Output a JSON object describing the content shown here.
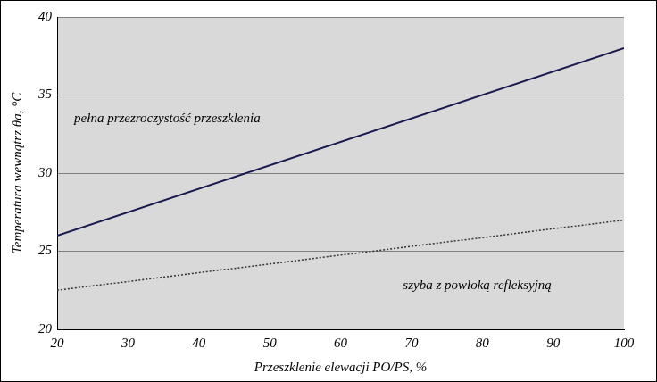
{
  "chart_data": {
    "type": "line",
    "x_label": "Przeszklenie elewacji PO/PS, %",
    "y_label": "Temperatura wewnątrz θa, °C",
    "series": [
      {
        "name": "pełna przezroczystość przeszklenia",
        "color": "#1a1a4e",
        "line_style": "solid",
        "x": [
          20,
          100
        ],
        "values": [
          26,
          38
        ]
      },
      {
        "name": "szyba z powłoką refleksyjną",
        "color": "#333333",
        "line_style": "dotted",
        "x": [
          20,
          100
        ],
        "values": [
          22.5,
          27
        ]
      }
    ],
    "xlim": [
      20,
      100
    ],
    "xticks": [
      20,
      30,
      40,
      50,
      60,
      70,
      80,
      90,
      100
    ],
    "ylim": [
      20,
      40
    ],
    "yticks": [
      20,
      25,
      30,
      35,
      40
    ],
    "grid": "y"
  }
}
